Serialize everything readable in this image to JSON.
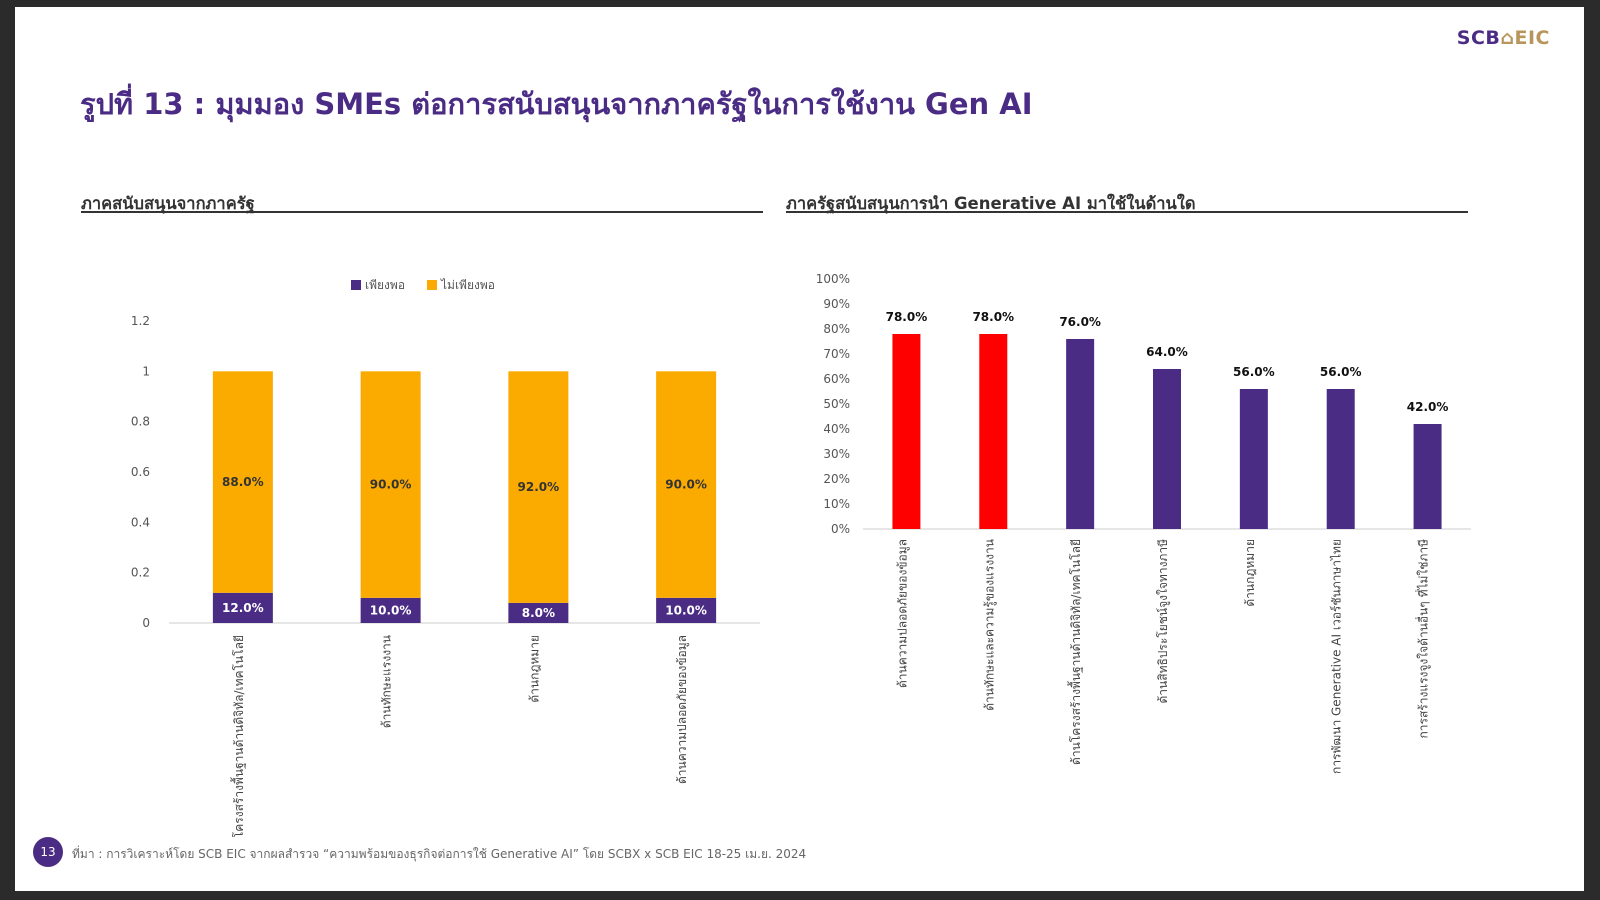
{
  "header": {
    "logo_scb": "SCB",
    "logo_eic": "EIC",
    "title": "รูปที่ 13 : มุมมอง SMEs ต่อการสนับสนุนจากภาครัฐในการใช้งาน Gen AI"
  },
  "footer": {
    "page_number": "13",
    "source": "ที่มา : การวิเคราะห์โดย SCB EIC จากผลสำรวจ “ความพร้อมของธุรกิจต่อการใช้ Generative AI” โดย SCBX x SCB EIC 18-25 เม.ย. 2024"
  },
  "colors": {
    "purple": "#4b2c85",
    "orange": "#fbab00",
    "red": "#ff0000",
    "logo_gold": "#b8955a"
  },
  "chart_data": [
    {
      "type": "bar",
      "stacked": true,
      "title": "ภาคสนับสนุนจากภาครัฐ",
      "legend_position": "top",
      "categories": [
        "ด้านโครงสร้างพื้นฐานด้านดิจิทัล/เทคโนโลยี",
        "ด้านทักษะแรงงาน",
        "ด้านกฎหมาย",
        "ด้านความปลอดภัยของข้อมูล"
      ],
      "series": [
        {
          "name": "เพียงพอ",
          "values": [
            0.12,
            0.1,
            0.08,
            0.1
          ],
          "labels": [
            "12.0%",
            "10.0%",
            "8.0%",
            "10.0%"
          ],
          "color": "#4b2c85"
        },
        {
          "name": "ไม่เพียงพอ",
          "values": [
            0.88,
            0.9,
            0.92,
            0.9
          ],
          "labels": [
            "88.0%",
            "90.0%",
            "92.0%",
            "90.0%"
          ],
          "color": "#fbab00"
        }
      ],
      "ylim": [
        0,
        1.2
      ],
      "yticks": [
        "0",
        "0.2",
        "0.4",
        "0.6",
        "0.8",
        "1",
        "1.2"
      ]
    },
    {
      "type": "bar",
      "title": "ภาครัฐสนับสนุนการนำ Generative AI มาใช้ในด้านใด",
      "categories": [
        "ด้านความปลอดภัยของข้อมูล",
        "ด้านทักษะและความรู้ของแรงงาน",
        "ด้านโครงสร้างพื้นฐานด้านดิจิทัล/เทคโนโลยี",
        "ด้านสิทธิประโยชน์จูงใจทางภาษี",
        "ด้านกฎหมาย",
        "การพัฒนา Generative AI เวอร์ชันภาษาไทย",
        "การสร้างแรงจูงใจด้านอื่นๆ ที่ไม่ใช่ภาษี"
      ],
      "values": [
        78.0,
        78.0,
        76.0,
        64.0,
        56.0,
        56.0,
        42.0
      ],
      "labels": [
        "78.0%",
        "78.0%",
        "76.0%",
        "64.0%",
        "56.0%",
        "56.0%",
        "42.0%"
      ],
      "bar_colors": [
        "#ff0000",
        "#ff0000",
        "#4b2c85",
        "#4b2c85",
        "#4b2c85",
        "#4b2c85",
        "#4b2c85"
      ],
      "ylim": [
        0,
        100
      ],
      "yticks": [
        "0%",
        "10%",
        "20%",
        "30%",
        "40%",
        "50%",
        "60%",
        "70%",
        "80%",
        "90%",
        "100%"
      ]
    }
  ]
}
